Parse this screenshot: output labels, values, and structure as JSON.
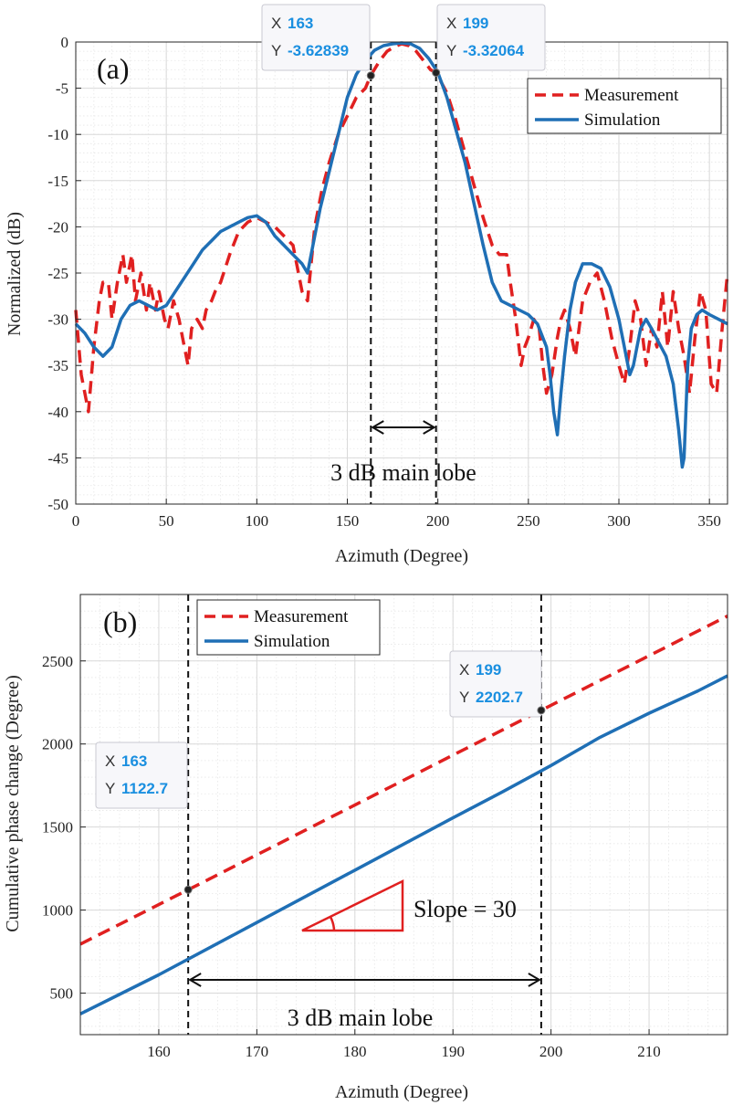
{
  "chart_data": [
    {
      "panel": "(a)",
      "type": "line",
      "xlabel": "Azimuth (Degree)",
      "ylabel": "Normalized (dB)",
      "xlim": [
        0,
        360
      ],
      "ylim": [
        -50,
        0
      ],
      "xticks": [
        0,
        50,
        100,
        150,
        200,
        250,
        300,
        350
      ],
      "yticks": [
        0,
        -5,
        -10,
        -15,
        -20,
        -25,
        -30,
        -35,
        -40,
        -45,
        -50
      ],
      "grid": true,
      "legend_position": "top-right",
      "series": [
        {
          "name": "Measurement",
          "style": "dashed",
          "color": "#e02020",
          "x": [
            0,
            3,
            7,
            10,
            13,
            15,
            18,
            20,
            23,
            26,
            28,
            31,
            33,
            36,
            39,
            41,
            44,
            46,
            49,
            51,
            54,
            57,
            59,
            62,
            64,
            67,
            70,
            72,
            75,
            77,
            80,
            85,
            90,
            95,
            100,
            105,
            110,
            115,
            120,
            125,
            128,
            132,
            136,
            140,
            145,
            150,
            155,
            160,
            163,
            168,
            172,
            176,
            180,
            184,
            188,
            192,
            196,
            199,
            205,
            210,
            215,
            220,
            225,
            230,
            234,
            238,
            240,
            243,
            246,
            248,
            250,
            253,
            256,
            258,
            260,
            263,
            266,
            268,
            270,
            273,
            276,
            280,
            284,
            288,
            292,
            296,
            300,
            303,
            306,
            309,
            312,
            315,
            318,
            321,
            324,
            327,
            330,
            333,
            336,
            339,
            342,
            345,
            348,
            351,
            354,
            357,
            360
          ],
          "y": [
            -29,
            -36,
            -40,
            -33,
            -28,
            -26,
            -26,
            -30,
            -26,
            -23,
            -26,
            -23,
            -28,
            -25,
            -29,
            -26,
            -29,
            -27,
            -30,
            -31,
            -28,
            -30,
            -32,
            -35,
            -31,
            -30,
            -31,
            -29,
            -28,
            -27,
            -26,
            -23,
            -20.5,
            -19.5,
            -19,
            -19.5,
            -20,
            -21,
            -22,
            -27,
            -28,
            -20,
            -16,
            -13,
            -10,
            -8,
            -6,
            -5,
            -3.6,
            -2,
            -1,
            -0.5,
            -0.2,
            -0.4,
            -1,
            -2,
            -3,
            -3.3,
            -5.5,
            -8.5,
            -12,
            -15.5,
            -19,
            -22,
            -23,
            -23,
            -26,
            -30,
            -35,
            -33,
            -32,
            -30,
            -31,
            -35,
            -38,
            -36,
            -32,
            -30,
            -29,
            -31,
            -34,
            -28,
            -26,
            -25,
            -28,
            -32,
            -35,
            -37,
            -33,
            -28,
            -30,
            -35,
            -31,
            -33,
            -27,
            -33,
            -27,
            -31,
            -34,
            -38,
            -32,
            -27,
            -29,
            -37,
            -38,
            -31,
            -25
          ],
          "datatips": [
            {
              "x": "163",
              "y": "-3.62839"
            },
            {
              "x": "199",
              "y": "-3.32064"
            }
          ]
        },
        {
          "name": "Simulation",
          "style": "solid",
          "color": "#1f6fb5",
          "x": [
            0,
            5,
            10,
            15,
            20,
            25,
            30,
            35,
            40,
            45,
            50,
            55,
            60,
            65,
            70,
            75,
            80,
            85,
            90,
            95,
            100,
            105,
            110,
            115,
            120,
            125,
            128,
            132,
            135,
            140,
            145,
            150,
            155,
            160,
            165,
            170,
            175,
            180,
            185,
            190,
            195,
            200,
            205,
            210,
            215,
            220,
            225,
            230,
            235,
            240,
            245,
            250,
            255,
            260,
            262,
            264,
            266,
            268,
            270,
            273,
            276,
            280,
            285,
            290,
            295,
            300,
            303,
            306,
            308,
            310,
            312,
            315,
            318,
            322,
            326,
            330,
            333,
            335,
            336,
            337,
            338,
            340,
            343,
            346,
            350,
            355,
            360
          ],
          "y": [
            -30.5,
            -31.5,
            -33,
            -34,
            -33,
            -30,
            -28.5,
            -28,
            -28.5,
            -29,
            -28.5,
            -27,
            -25.5,
            -24,
            -22.5,
            -21.5,
            -20.5,
            -20,
            -19.5,
            -19,
            -18.8,
            -19.5,
            -21,
            -22,
            -23,
            -24,
            -25,
            -21,
            -18,
            -14,
            -10,
            -6,
            -3.5,
            -2,
            -0.9,
            -0.4,
            -0.2,
            -0.1,
            -0.2,
            -0.7,
            -1.8,
            -3.3,
            -6,
            -9.5,
            -13,
            -17.5,
            -22,
            -26,
            -28,
            -28.5,
            -29,
            -29.5,
            -30.5,
            -33,
            -36,
            -40,
            -42.5,
            -38,
            -34,
            -29,
            -26,
            -24,
            -24,
            -24.5,
            -26.5,
            -30,
            -33,
            -36,
            -35,
            -33,
            -31,
            -30,
            -31,
            -32.5,
            -34,
            -37,
            -42,
            -46,
            -45,
            -40,
            -35,
            -31,
            -29.5,
            -29,
            -29.5,
            -30,
            -30.5
          ]
        }
      ],
      "annotations": [
        {
          "text": "3 dB  main lobe",
          "arrow_from_x": 163,
          "arrow_to_x": 199,
          "vlines_x": [
            163,
            199
          ]
        }
      ]
    },
    {
      "panel": "(b)",
      "type": "line",
      "xlabel": "Azimuth (Degree)",
      "ylabel": "Cumulative phase change (Degree)",
      "xlim": [
        152,
        218
      ],
      "ylim": [
        250,
        2900
      ],
      "xticks": [
        160,
        170,
        180,
        190,
        200,
        210
      ],
      "yticks": [
        500,
        1000,
        1500,
        2000,
        2500
      ],
      "grid": true,
      "legend_position": "top-left",
      "series": [
        {
          "name": "Measurement",
          "style": "dashed",
          "color": "#e02020",
          "x": [
            152,
            163,
            199,
            218
          ],
          "y": [
            795,
            1122.7,
            2202.7,
            2770
          ],
          "datatips": [
            {
              "x": "163",
              "y": "1122.7"
            },
            {
              "x": "199",
              "y": "2202.7"
            }
          ]
        },
        {
          "name": "Simulation",
          "style": "solid",
          "color": "#1f6fb5",
          "x": [
            152,
            160,
            170,
            180,
            190,
            195,
            200,
            205,
            210,
            215,
            218
          ],
          "y": [
            375,
            610,
            925,
            1240,
            1555,
            1710,
            1870,
            2040,
            2185,
            2320,
            2410
          ]
        }
      ],
      "annotations": [
        {
          "text": "3 dB  main lobe",
          "arrow_from_x": 163,
          "arrow_to_x": 199,
          "vlines_x": [
            163,
            199
          ]
        },
        {
          "text": "Slope = 30",
          "triangle": true
        }
      ]
    }
  ],
  "ui": {
    "tip_x_label": "X",
    "tip_y_label": "Y"
  }
}
